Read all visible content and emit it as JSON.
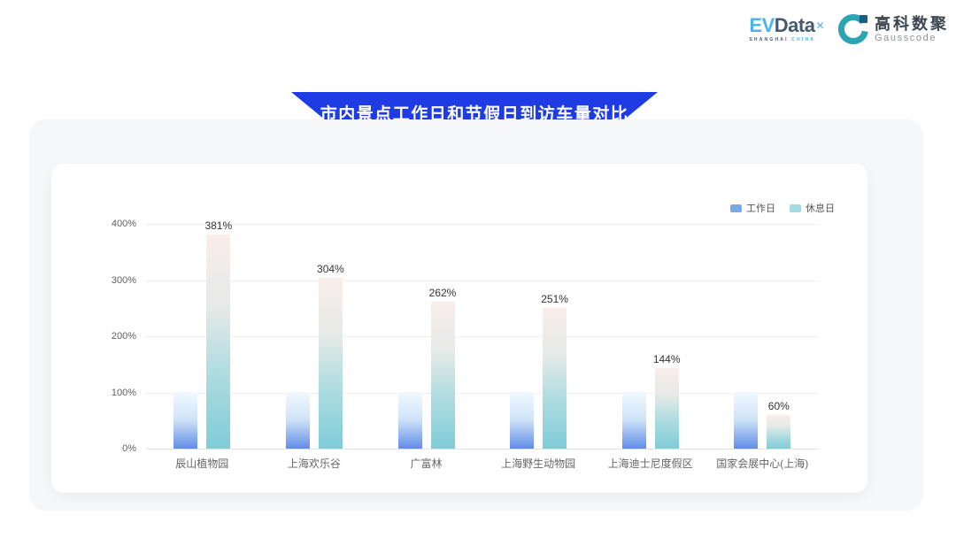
{
  "header": {
    "evdata": {
      "ev": "EV",
      "data": "Data",
      "sup": "✕",
      "subtitle_left": "SHANGHAI",
      "subtitle_right": "CHINA"
    },
    "gausscode": {
      "cn": "高科数聚",
      "en": "Gausscode"
    }
  },
  "banner": {
    "title": "市内景点工作日和节假日到访车量对比"
  },
  "colors": {
    "banner_blue": "#1e3be4",
    "panel_bg": "#f6f7f9",
    "gausscode_teal": "#2ba4b4",
    "gausscode_navy": "#1d5c85",
    "evdata_blue": "#49b4e9",
    "evdata_dark": "#46586c"
  },
  "chart_data": {
    "type": "bar",
    "title": "市内景点工作日和节假日到访车量对比",
    "categories": [
      "辰山植物园",
      "上海欢乐谷",
      "广富林",
      "上海野生动物园",
      "上海迪士尼度假区",
      "国家会展中心(上海)"
    ],
    "series": [
      {
        "name": "工作日",
        "values": [
          100,
          100,
          100,
          100,
          100,
          100
        ],
        "color": "#7ba7e8",
        "gradient": [
          "#f2f9fe",
          "#cde2f8",
          "#5f8ce6"
        ],
        "data_labels": [
          "",
          "",
          "",
          "",
          "",
          ""
        ]
      },
      {
        "name": "休息日",
        "values": [
          381,
          304,
          262,
          251,
          144,
          60
        ],
        "color": "#a6d9e0",
        "gradient": [
          "#f9edea",
          "#e6eae8",
          "#abdbdf",
          "#7fccd8"
        ],
        "data_labels": [
          "381%",
          "304%",
          "262%",
          "251%",
          "144%",
          "60%"
        ]
      }
    ],
    "yticks": [
      "0%",
      "100%",
      "200%",
      "300%",
      "400%"
    ],
    "ylim": [
      0,
      400
    ],
    "grid": true,
    "legend_position": "top-right"
  }
}
